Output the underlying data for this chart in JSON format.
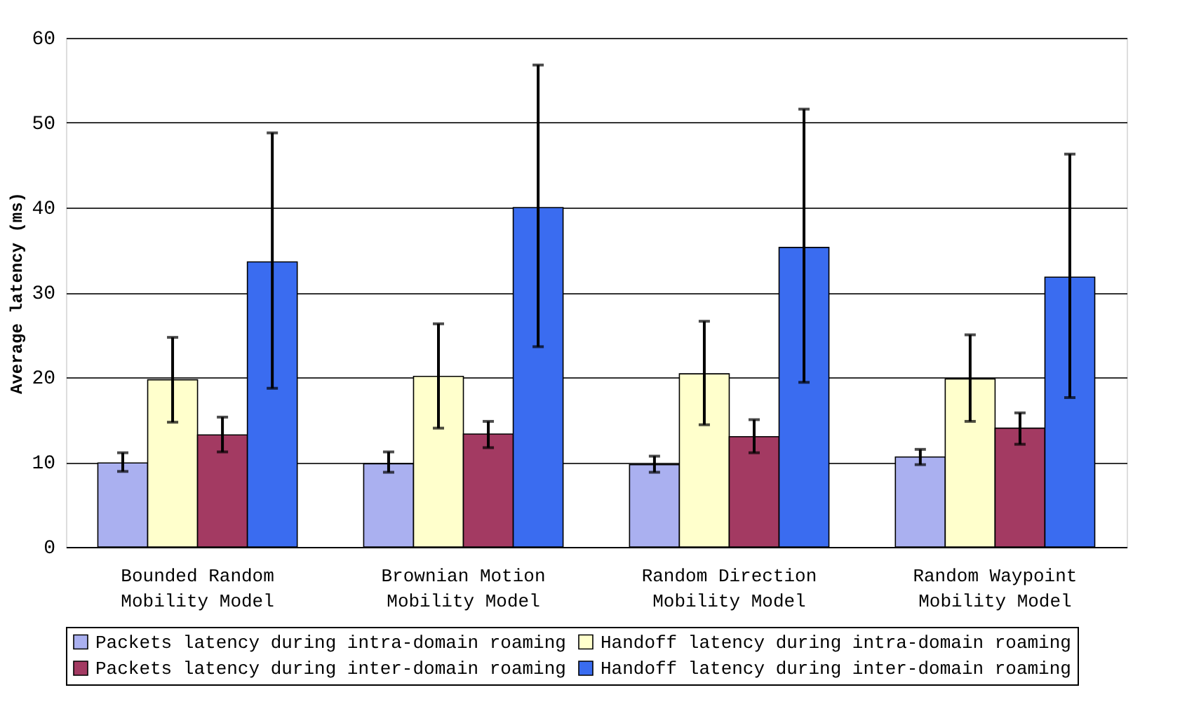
{
  "chart_data": {
    "type": "bar",
    "ylabel": "Average latency (ms)",
    "categories": [
      "Bounded Random Mobility Model",
      "Brownian Motion Mobility Model",
      "Random Direction Mobility Model",
      "Random Waypoint Mobility Model"
    ],
    "series": [
      {
        "name": "Packets latency during intra-domain roaming",
        "color": "#aab0f0",
        "values": [
          9.9,
          9.8,
          9.7,
          10.6
        ],
        "errors": [
          [
            8.9,
            11.1
          ],
          [
            8.8,
            11.2
          ],
          [
            8.8,
            10.7
          ],
          [
            9.7,
            11.5
          ]
        ]
      },
      {
        "name": "Handoff latency during intra-domain roaming",
        "color": "#ffffcc",
        "values": [
          19.7,
          20.1,
          20.4,
          19.8
        ],
        "errors": [
          [
            14.7,
            24.7
          ],
          [
            14.0,
            26.3
          ],
          [
            14.4,
            26.6
          ],
          [
            14.8,
            25.0
          ]
        ]
      },
      {
        "name": "Packets latency during inter-domain roaming",
        "color": "#a33a62",
        "values": [
          13.2,
          13.3,
          13.0,
          14.0
        ],
        "errors": [
          [
            11.2,
            15.3
          ],
          [
            11.7,
            14.8
          ],
          [
            11.1,
            15.0
          ],
          [
            12.1,
            15.8
          ]
        ]
      },
      {
        "name": "Handoff latency during inter-domain roaming",
        "color": "#3a6cf0",
        "values": [
          33.6,
          40.0,
          35.3,
          31.8
        ],
        "errors": [
          [
            18.7,
            48.8
          ],
          [
            23.6,
            56.8
          ],
          [
            19.4,
            51.6
          ],
          [
            17.6,
            46.3
          ]
        ]
      }
    ],
    "ylim": [
      0,
      60
    ],
    "yticks": [
      0,
      10,
      20,
      30,
      40,
      50,
      60
    ],
    "grid": "y",
    "legend": "bottom"
  }
}
